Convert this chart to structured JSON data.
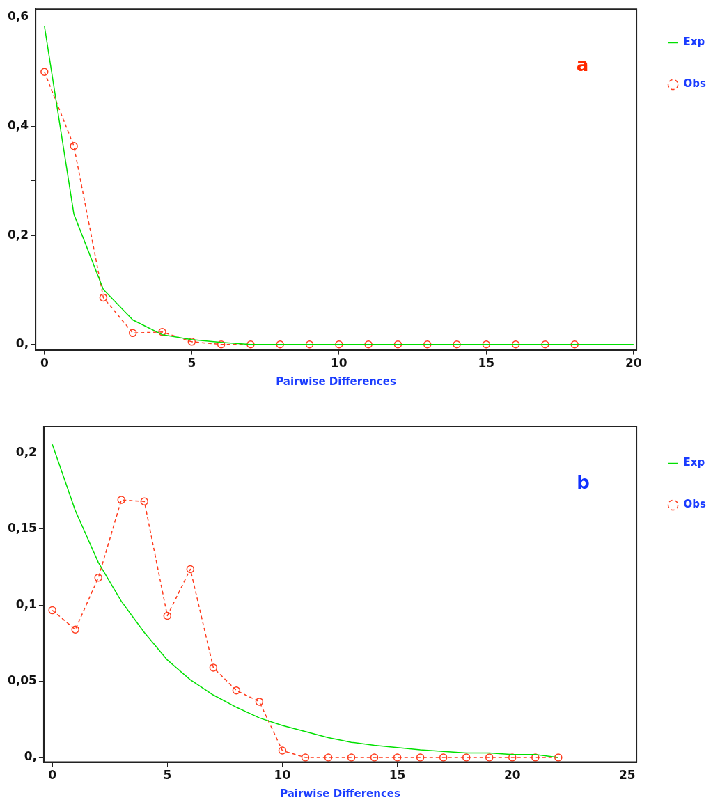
{
  "chart_data": [
    {
      "type": "line",
      "xlabel": "Pairwise Differences",
      "annotations": [
        "a"
      ],
      "legend": "right",
      "grid": false,
      "xlim": [
        -0.3,
        20.1
      ],
      "xticks": [
        0,
        5,
        10,
        15,
        20
      ],
      "ylim": [
        -0.01,
        0.615
      ],
      "yticks": [
        {
          "value": 0,
          "label": "0,"
        },
        {
          "value": 0.1,
          "label": null
        },
        {
          "value": 0.2,
          "label": "0,2"
        },
        {
          "value": 0.3,
          "label": null
        },
        {
          "value": 0.4,
          "label": "0,4"
        },
        {
          "value": 0.5,
          "label": null
        },
        {
          "value": 0.6,
          "label": "0,6"
        }
      ],
      "series": [
        {
          "name": "Exp",
          "color": "#00e000",
          "marker": "none",
          "line_style": "solid",
          "x": [
            0,
            1,
            2,
            3,
            4,
            5,
            6,
            7,
            8,
            9,
            10,
            11,
            12,
            13,
            14,
            15,
            16,
            17,
            18,
            19,
            20
          ],
          "values": [
            0.584,
            0.239,
            0.101,
            0.045,
            0.018,
            0.009,
            0.004,
            0,
            0,
            0,
            0,
            0,
            0,
            0,
            0,
            0,
            0,
            0,
            0,
            0,
            0
          ]
        },
        {
          "name": "Obs",
          "color": "#ff3c1e",
          "marker": "circle",
          "line_style": "dashed",
          "x": [
            0,
            1,
            2,
            3,
            4,
            5,
            6,
            7,
            8,
            9,
            10,
            11,
            12,
            13,
            14,
            15,
            16,
            17,
            18
          ],
          "values": [
            0.5,
            0.364,
            0.086,
            0.021,
            0.023,
            0.005,
            0,
            0,
            0,
            0,
            0,
            0,
            0,
            0,
            0,
            0,
            0,
            0,
            0
          ]
        }
      ]
    },
    {
      "type": "line",
      "xlabel": "Pairwise Differences",
      "annotations": [
        "b"
      ],
      "legend": "right",
      "grid": false,
      "xlim": [
        -0.37,
        25.4
      ],
      "xticks": [
        0,
        5,
        10,
        15,
        20,
        25
      ],
      "ylim": [
        -0.003,
        0.217
      ],
      "yticks": [
        {
          "value": 0,
          "label": "0,"
        },
        {
          "value": 0.05,
          "label": "0,05"
        },
        {
          "value": 0.1,
          "label": "0,1"
        },
        {
          "value": 0.15,
          "label": "0,15"
        },
        {
          "value": 0.2,
          "label": "0,2"
        }
      ],
      "series": [
        {
          "name": "Exp",
          "color": "#00e000",
          "marker": "none",
          "line_style": "solid",
          "x": [
            0,
            1,
            2,
            3,
            4,
            5,
            6,
            7,
            8,
            9,
            10,
            11,
            12,
            13,
            14,
            15,
            16,
            17,
            18,
            19,
            20,
            21,
            22
          ],
          "values": [
            0.2055,
            0.162,
            0.128,
            0.1025,
            0.082,
            0.064,
            0.051,
            0.041,
            0.033,
            0.026,
            0.021,
            0.017,
            0.013,
            0.01,
            0.008,
            0.0065,
            0.005,
            0.004,
            0.003,
            0.003,
            0.002,
            0.002,
            0
          ]
        },
        {
          "name": "Obs",
          "color": "#ff3c1e",
          "marker": "circle",
          "line_style": "dashed",
          "x": [
            0,
            1,
            2,
            3,
            4,
            5,
            6,
            7,
            8,
            9,
            10,
            11,
            12,
            13,
            14,
            15,
            16,
            17,
            18,
            19,
            20,
            21,
            22
          ],
          "values": [
            0.0966,
            0.084,
            0.118,
            0.169,
            0.168,
            0.093,
            0.1236,
            0.059,
            0.044,
            0.0366,
            0.0046,
            0,
            0,
            0,
            0,
            0,
            0,
            0,
            0,
            0,
            0,
            0,
            0
          ]
        }
      ]
    }
  ]
}
